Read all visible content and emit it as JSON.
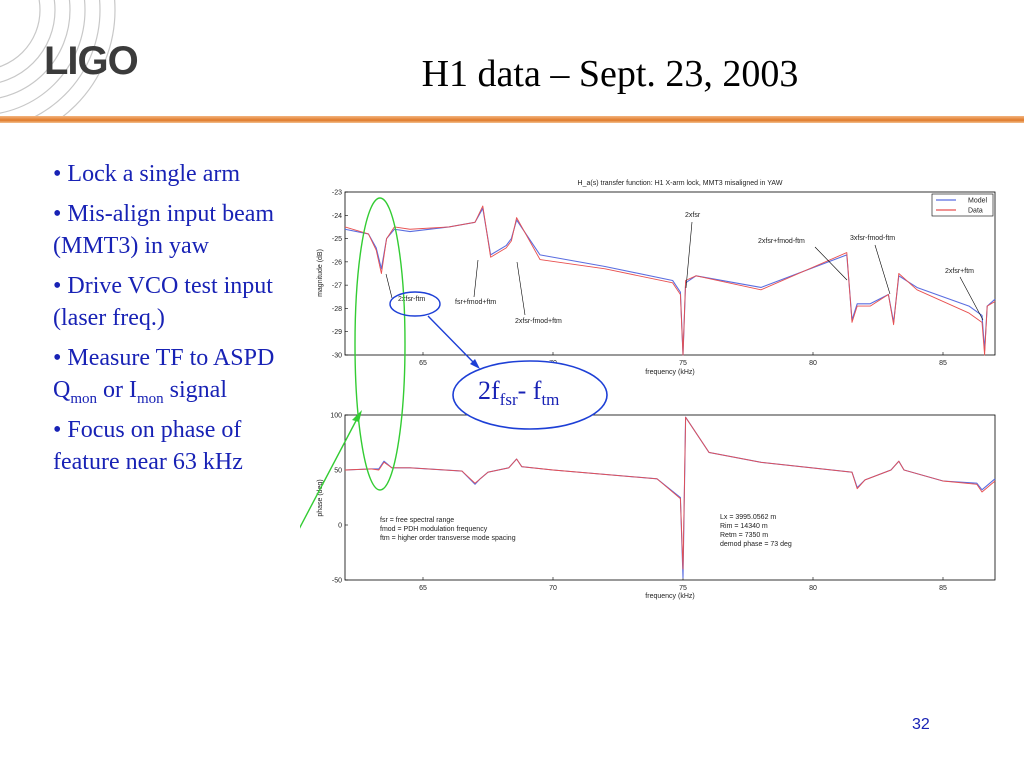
{
  "slide": {
    "title": "H1 data – Sept. 23, 2003",
    "logo_text": "LIGO",
    "page_number": "32",
    "colors": {
      "bullet_text": "#1822b5",
      "accent_rule": "#e07a2a",
      "callout_ellipse": "#1d3fd6",
      "highlight_ellipse": "#33cc33"
    }
  },
  "bullets": [
    {
      "text": "• Lock a single arm"
    },
    {
      "text": "• Mis-align input beam (MMT3) in yaw"
    },
    {
      "text": "• Drive VCO test input (laser freq.)"
    },
    {
      "pre": "• Measure TF to ASPD Q",
      "sub1": "mon",
      "mid": " or I",
      "sub2": "mon",
      "post": " signal"
    },
    {
      "text": "• Focus on phase of feature near 63 kHz"
    }
  ],
  "callout": {
    "main": "2f",
    "sub1": "fsr",
    "mid": "- f",
    "sub2": "tm"
  },
  "chart_data": [
    {
      "type": "line",
      "title": "H_a(s) transfer function: H1 X-arm lock, MMT3 misaligned in YAW",
      "xlabel": "frequency (kHz)",
      "ylabel": "magnitude (dB)",
      "xlim": [
        62,
        87
      ],
      "ylim": [
        -30,
        -23
      ],
      "xticks": [
        65,
        70,
        75,
        80,
        85
      ],
      "yticks": [
        -23,
        -24,
        -25,
        -26,
        -27,
        -28,
        -29,
        -30
      ],
      "legend": {
        "placement": "top-right",
        "entries": [
          "Model",
          "Data"
        ]
      },
      "series": [
        {
          "name": "Model",
          "color": "#5a6de0",
          "x": [
            62,
            62.9,
            63.2,
            63.4,
            63.6,
            63.9,
            64.5,
            66,
            67.0,
            67.3,
            67.6,
            68.2,
            68.4,
            68.6,
            69.5,
            72,
            74.6,
            74.9,
            75.0,
            75.1,
            75.5,
            78,
            81.3,
            81.5,
            81.7,
            82.2,
            82.9,
            83.1,
            83.3,
            84,
            86,
            86.5,
            86.6,
            86.7,
            87
          ],
          "y": [
            -24.6,
            -24.8,
            -25.4,
            -26.3,
            -25.0,
            -24.6,
            -24.7,
            -24.5,
            -24.3,
            -23.7,
            -25.7,
            -25.3,
            -25.0,
            -24.2,
            -25.7,
            -26.2,
            -26.8,
            -27.3,
            -30.0,
            -26.9,
            -26.6,
            -27.1,
            -25.7,
            -28.5,
            -27.8,
            -27.8,
            -27.4,
            -28.6,
            -26.6,
            -27.1,
            -27.9,
            -28.3,
            -29.8,
            -27.9,
            -27.6
          ]
        },
        {
          "name": "Data",
          "color": "#e85050",
          "x": [
            62,
            62.9,
            63.2,
            63.4,
            63.6,
            63.9,
            64.5,
            66,
            67.0,
            67.3,
            67.6,
            68.2,
            68.4,
            68.6,
            69.5,
            72,
            74.6,
            74.9,
            75.0,
            75.1,
            75.5,
            78,
            81.3,
            81.5,
            81.7,
            82.2,
            82.9,
            83.1,
            83.3,
            84,
            86,
            86.5,
            86.6,
            86.7,
            87
          ],
          "y": [
            -24.5,
            -24.8,
            -25.5,
            -26.5,
            -25.0,
            -24.5,
            -24.6,
            -24.5,
            -24.3,
            -23.6,
            -25.8,
            -25.4,
            -25.1,
            -24.1,
            -25.9,
            -26.3,
            -26.9,
            -27.4,
            -30.0,
            -26.8,
            -26.6,
            -27.2,
            -25.6,
            -28.6,
            -27.9,
            -27.9,
            -27.4,
            -28.7,
            -26.5,
            -27.2,
            -28.2,
            -28.6,
            -30.0,
            -27.9,
            -27.7
          ]
        }
      ],
      "annotations": [
        "2xfsr",
        "2xfsr+fmod-ftm",
        "3xfsr-fmod-ftm",
        "2xfsr+ftm",
        "2xfsr-ftm",
        "fsr+fmod+ftm",
        "2xfsr-fmod+ftm"
      ]
    },
    {
      "type": "line",
      "xlabel": "frequency (kHz)",
      "ylabel": "phase (deg)",
      "xlim": [
        62,
        87
      ],
      "ylim": [
        -50,
        100
      ],
      "xticks": [
        65,
        70,
        75,
        80,
        85
      ],
      "yticks": [
        100,
        50,
        0,
        -50
      ],
      "series": [
        {
          "name": "Model",
          "color": "#5a6de0",
          "x": [
            62,
            63.0,
            63.3,
            63.5,
            63.8,
            64.5,
            66.5,
            67.0,
            67.2,
            67.5,
            68.3,
            68.6,
            68.8,
            70,
            74.0,
            74.9,
            75.0,
            75.1,
            76,
            78,
            81.5,
            81.7,
            82.0,
            83.0,
            83.3,
            83.5,
            85,
            86.3,
            86.5,
            87
          ],
          "y": [
            50,
            51,
            51,
            58,
            52,
            52,
            49,
            37,
            42,
            48,
            52,
            60,
            53,
            50,
            42,
            25,
            -48,
            98,
            66,
            57,
            48,
            34,
            41,
            50,
            58,
            50,
            40,
            38,
            32,
            42
          ]
        },
        {
          "name": "Data",
          "color": "#e85050",
          "x": [
            62,
            63.0,
            63.3,
            63.5,
            63.8,
            64.5,
            66.5,
            67.0,
            67.2,
            67.5,
            68.3,
            68.6,
            68.8,
            70,
            74.0,
            74.9,
            75.0,
            75.1,
            76,
            78,
            81.5,
            81.7,
            82.0,
            83.0,
            83.3,
            83.5,
            85,
            86.3,
            86.5,
            87
          ],
          "y": [
            50,
            51,
            50,
            57,
            52,
            52,
            49,
            38,
            42,
            48,
            52,
            60,
            53,
            50,
            42,
            24,
            -40,
            98,
            66,
            57,
            48,
            33,
            41,
            50,
            58,
            50,
            40,
            37,
            30,
            40
          ]
        }
      ],
      "notes_left": [
        "fsr = free spectral range",
        "fmod = PDH modulation frequency",
        "ftm = higher order transverse mode spacing"
      ],
      "notes_right": [
        "Lx = 3995.0562 m",
        "Rim = 14340 m",
        "Retm = 7350 m",
        "demod phase = 73 deg"
      ]
    }
  ]
}
